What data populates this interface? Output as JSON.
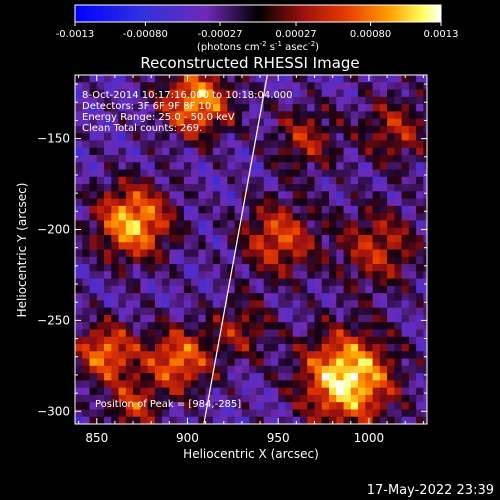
{
  "chart_data": {
    "type": "heatmap",
    "title": "Reconstructed RHESSI Image",
    "xlabel": "Heliocentric X (arcsec)",
    "ylabel": "Heliocentric Y (arcsec)",
    "xlim": [
      838,
      1032
    ],
    "ylim": [
      -307,
      -115
    ],
    "x_ticks": [
      850,
      900,
      950,
      1000
    ],
    "y_ticks": [
      -150,
      -200,
      -250,
      -300
    ],
    "colorbar": {
      "min": -0.0013,
      "max": 0.0013,
      "tick_labels": [
        "-0.0013",
        "-0.00080",
        "-0.00027",
        "0.00027",
        "0.00080",
        "0.0013"
      ],
      "tick_values": [
        -0.0013,
        -0.0008,
        -0.00027,
        0.00027,
        0.0008,
        0.0013
      ],
      "units_prefix": "(photons cm",
      "units_sup1": "-2",
      "units_mid1": " s",
      "units_sup2": "-1",
      "units_mid2": " asec",
      "units_sup3": "-2",
      "units_suffix": ")"
    },
    "annotations": [
      " 8-Oct-2014 10:17:16.000 to 10:18:04.000",
      "Detectors: 3F 6F 9F 8F 10",
      "Energy Range: 25.0 - 50.0 keV",
      "Clean     Total counts: 269."
    ],
    "peak_label": "Position of Peak = [984,-285]",
    "peak_position": [
      984,
      -285
    ],
    "limb_line": [
      [
        909,
        -307
      ],
      [
        944,
        -115
      ]
    ],
    "sources": [
      {
        "x": 988,
        "y": -282,
        "sigma": 18,
        "amp": 1.0
      },
      {
        "x": 870,
        "y": -196,
        "sigma": 15,
        "amp": 0.85
      },
      {
        "x": 905,
        "y": -130,
        "sigma": 14,
        "amp": 0.8
      },
      {
        "x": 855,
        "y": -268,
        "sigma": 12,
        "amp": 0.7
      },
      {
        "x": 895,
        "y": -272,
        "sigma": 13,
        "amp": 0.7
      },
      {
        "x": 950,
        "y": -205,
        "sigma": 15,
        "amp": 0.6
      },
      {
        "x": 1005,
        "y": -210,
        "sigma": 16,
        "amp": 0.5
      },
      {
        "x": 1015,
        "y": -145,
        "sigma": 14,
        "amp": 0.45
      },
      {
        "x": 965,
        "y": -150,
        "sigma": 13,
        "amp": 0.45
      },
      {
        "x": 870,
        "y": -298,
        "sigma": 10,
        "amp": 0.5
      },
      {
        "x": 930,
        "y": -255,
        "sigma": 12,
        "amp": 0.4
      }
    ]
  },
  "footer": {
    "timestamp": "17-May-2022 23:39"
  }
}
